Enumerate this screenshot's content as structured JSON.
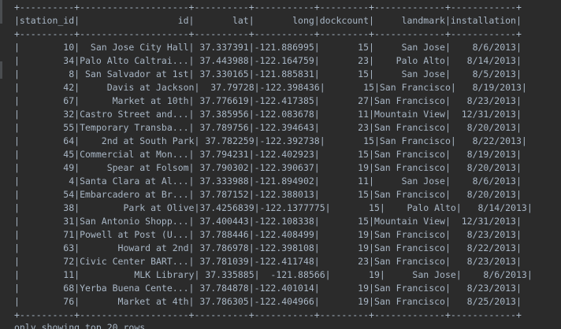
{
  "console": {
    "separator": "+----------+--------------------+----------+-----------+---------+-------------+------------+",
    "header": "|station_id|                  id|       lat|       long|dockcount|     landmark|installation|",
    "rows": [
      "|        10|  San Jose City Hall| 37.337391|-121.886995|       15|     San Jose|    8/6/2013|",
      "|        34|Palo Alto Caltrai...| 37.443988|-122.164759|       23|    Palo Alto|   8/14/2013|",
      "|         8| San Salvador at 1st| 37.330165|-121.885831|       15|     San Jose|    8/5/2013|",
      "|        42|     Davis at Jackson|  37.79728|-122.398436|       15|San Francisco|   8/19/2013|",
      "|        67|      Market at 10th| 37.776619|-122.417385|       27|San Francisco|   8/23/2013|",
      "|        32|Castro Street and...| 37.385956|-122.083678|       11|Mountain View|  12/31/2013|",
      "|        55|Temporary Transba...| 37.789756|-122.394643|       23|San Francisco|   8/20/2013|",
      "|        64|    2nd at South Park| 37.782259|-122.392738|       15|San Francisco|   8/22/2013|",
      "|        45|Commercial at Mon...| 37.794231|-122.402923|       15|San Francisco|   8/19/2013|",
      "|        49|     Spear at Folsom| 37.790302|-122.390637|       19|San Francisco|   8/20/2013|",
      "|         4|Santa Clara at Al...| 37.333988|-121.894902|       11|     San Jose|    8/6/2013|",
      "|        54|Embarcadero at Br...| 37.787152|-122.388013|       15|San Francisco|   8/20/2013|",
      "|        38|        Park at Olive|37.4256839|-122.1377775|       15|    Palo Alto|   8/14/2013|",
      "|        31|San Antonio Shopp...| 37.400443|-122.108338|       15|Mountain View|  12/31/2013|",
      "|        71|Powell at Post (U...| 37.788446|-122.408499|       19|San Francisco|   8/23/2013|",
      "|        63|       Howard at 2nd| 37.786978|-122.398108|       19|San Francisco|   8/22/2013|",
      "|        72|Civic Center BART...| 37.781039|-122.411748|       23|San Francisco|   8/23/2013|",
      "|        11|          MLK Library| 37.335885|  -121.88566|       19|     San Jose|    8/6/2013|",
      "|        68|Yerba Buena Cente...| 37.784878|-122.401014|       19|San Francisco|   8/23/2013|",
      "|        76|       Market at 4th| 37.786305|-122.404966|       19|San Francisco|   8/25/2013|"
    ],
    "footer": "only showing top 20 rows"
  }
}
